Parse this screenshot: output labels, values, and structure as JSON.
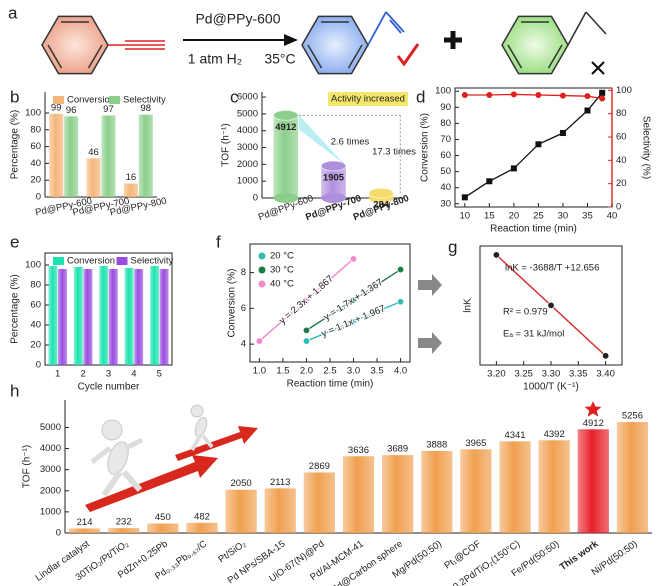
{
  "scheme": {
    "label": "a",
    "catalyst": "Pd@PPy-600",
    "pressure": "1 atm H₂",
    "temperature": "35°C"
  },
  "chart_data": [
    {
      "label": "b",
      "type": "bar",
      "ylabel": "Percentage (%)",
      "categories": [
        "Pd@PPy-600",
        "Pd@PPy-700",
        "Pd@PPy-800"
      ],
      "series": [
        {
          "name": "Conversion",
          "color": "#f5b57a",
          "values": [
            99,
            46,
            16
          ]
        },
        {
          "name": "Selectivity",
          "color": "#8ccf8c",
          "values": [
            96,
            97,
            98
          ]
        }
      ],
      "ylim": [
        0,
        125
      ],
      "yticks": [
        0,
        20,
        40,
        60,
        80,
        100
      ],
      "legend": "top",
      "show_values": true
    },
    {
      "label": "c",
      "type": "bar",
      "style": "cylinder",
      "ylabel": "TOF (h⁻¹)",
      "categories": [
        "Pd@PPy-600",
        "Pd@PPy-700",
        "Pd@PPy-800"
      ],
      "values": [
        4912,
        1905,
        284
      ],
      "colors": [
        "#8ccf8c",
        "#b08fdf",
        "#f3dc6a"
      ],
      "value_label_colors": [
        "#5db75d",
        "#c46be0",
        "#d8b830"
      ],
      "ylim": [
        0,
        6300
      ],
      "yticks": [
        0,
        1000,
        2000,
        3000,
        4000,
        5000,
        6000
      ],
      "show_values": true,
      "annotations": [
        "Activity increased",
        "2.6 times",
        "17.3 times"
      ]
    },
    {
      "label": "d",
      "type": "line",
      "xlabel": "Reaction time (min)",
      "ylabel": "Conversion (%)",
      "y2label": "Selectivity (%)",
      "x": [
        10,
        15,
        20,
        25,
        30,
        35,
        38
      ],
      "series": [
        {
          "color": "#111111",
          "marker": "square",
          "values": [
            34,
            44,
            52,
            67,
            74,
            88,
            99
          ]
        },
        {
          "color": "#e0201b",
          "marker": "circle",
          "axis": "y2",
          "values": [
            96,
            96,
            96.5,
            96,
            95.5,
            95,
            93
          ]
        }
      ],
      "xlim": [
        8,
        40
      ],
      "xticks": [
        10,
        15,
        20,
        25,
        30,
        35,
        40
      ],
      "ylim": [
        28,
        102
      ],
      "yticks": [
        30,
        40,
        50,
        60,
        70,
        80,
        90,
        100
      ],
      "y2lim": [
        0,
        102
      ],
      "y2ticks": [
        0,
        20,
        40,
        60,
        80,
        100
      ]
    },
    {
      "label": "e",
      "type": "bar",
      "xlabel": "Cycle number",
      "ylabel": "Percentage (%)",
      "categories": [
        "1",
        "2",
        "3",
        "4",
        "5"
      ],
      "series": [
        {
          "name": "Conversion",
          "color": "#1ee3b0",
          "values": [
            99,
            98,
            99,
            97,
            99
          ]
        },
        {
          "name": "Selectivity",
          "color": "#9a4de0",
          "values": [
            96,
            96,
            96,
            96,
            96
          ]
        }
      ],
      "ylim": [
        0,
        112
      ],
      "yticks": [
        0,
        20,
        40,
        60,
        80,
        100
      ],
      "legend": "top"
    },
    {
      "label": "f",
      "type": "scatter",
      "xlabel": "Reaction time (min)",
      "ylabel": "Conversion (%)",
      "series": [
        {
          "name": "20 °C",
          "color": "#2fbcb4",
          "x": [
            2,
            3,
            4
          ],
          "values": [
            4.17,
            5.27,
            6.37
          ],
          "fit": "y = 1.1x + 1.967"
        },
        {
          "name": "30 °C",
          "color": "#1f7a4a",
          "x": [
            2,
            3,
            4
          ],
          "values": [
            4.77,
            6.47,
            8.17
          ],
          "fit": "y = 1.7x + 1.367"
        },
        {
          "name": "40 °C",
          "color": "#f08ac8",
          "x": [
            1,
            2,
            3
          ],
          "values": [
            4.17,
            6.47,
            8.77
          ],
          "fit": "y = 2.3x + 1.867"
        }
      ],
      "xlim": [
        0.8,
        4.2
      ],
      "xticks": [
        {
          "value": 1,
          "label": "1.0"
        },
        1.5,
        {
          "value": 2,
          "label": "2.0"
        },
        2.5,
        {
          "value": 3,
          "label": "3.0"
        },
        3.5,
        {
          "value": 4,
          "label": "4.0"
        }
      ],
      "ylim": [
        3,
        9.6
      ],
      "yticks": [
        4,
        6,
        8
      ],
      "legend": "upper left"
    },
    {
      "label": "g",
      "type": "scatter",
      "xlabel": "1000/T (K⁻¹)",
      "ylabel": "lnK",
      "x": [
        3.2,
        3.3,
        3.4
      ],
      "values": [
        0.855,
        0.486,
        0.117
      ],
      "color": "#222222",
      "line_color": "#d62728",
      "xlim": [
        3.17,
        3.43
      ],
      "xticks": [
        {
          "value": 3.2,
          "label": "3.20"
        },
        3.25,
        {
          "value": 3.3,
          "label": "3.30"
        },
        3.35,
        {
          "value": 3.4,
          "label": "3.40"
        }
      ],
      "ylim": [
        0.05,
        0.92
      ],
      "annotations": [
        "lnK = -3688/T +12.656",
        "R² = 0.979",
        "Eₐ = 31 kJ/mol"
      ]
    },
    {
      "label": "h",
      "type": "bar",
      "ylabel": "TOF (h⁻¹)",
      "categories": [
        "Lindlar catalyst",
        "30TiO₂/Pt/TiO₂",
        "PdZn+0.25Pb",
        "Pd₀.₃₃Pb₀.₆₇/C",
        "Pt/SiO₂",
        "Pd NPs/SBA-15",
        "UiO-67(N)@Pd",
        "Pd/Al-MCM-41",
        "Pd@Carbon sphere",
        "Mg/Pd(50:50)",
        "Pt₁@COF",
        "0.2Pd/TiO₂(150°C)",
        "Fe/Pd(50:50)",
        "This work",
        "Ni/Pd(50:50)"
      ],
      "values": [
        214,
        232,
        450,
        482,
        2050,
        2113,
        2869,
        3636,
        3689,
        3888,
        3965,
        4341,
        4392,
        4912,
        5256
      ],
      "colors": [
        "#f0a050",
        "#f0a050",
        "#f0a050",
        "#f0a050",
        "#f0a050",
        "#f0a050",
        "#f0a050",
        "#f0a050",
        "#f0a050",
        "#f0a050",
        "#f0a050",
        "#f0a050",
        "#f0a050",
        "#e8202a",
        "#f0a050"
      ],
      "value_label_colors": [
        "#5b9bd5",
        "#5b9bd5",
        "#5b9bd5",
        "#5b9bd5",
        "#5b9bd5",
        "#5b9bd5",
        "#5b9bd5",
        "#5b9bd5",
        "#5b9bd5",
        "#5b9bd5",
        "#5b9bd5",
        "#5b9bd5",
        "#5b9bd5",
        "#e02020",
        "#5b9bd5"
      ],
      "ylim": [
        0,
        6300
      ],
      "yticks": [
        0,
        1000,
        2000,
        3000,
        4000,
        5000
      ],
      "show_values": true
    }
  ]
}
